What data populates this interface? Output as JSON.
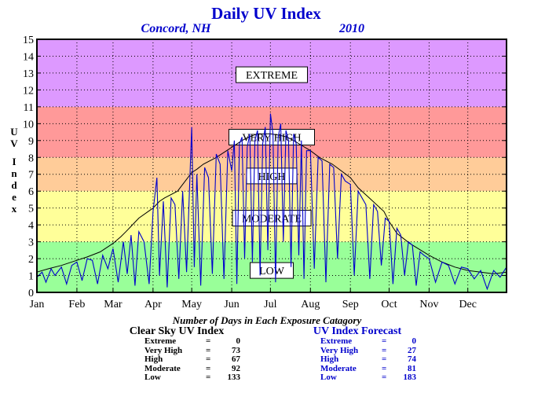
{
  "chart_data": {
    "type": "line",
    "title": "Daily UV Index",
    "subtitle_left": "Concord, NH",
    "subtitle_right": "2010",
    "ylabel": "UV Index",
    "ylim": [
      0,
      15
    ],
    "yticks": [
      "0",
      "1",
      "2",
      "3",
      "4",
      "5",
      "6",
      "7",
      "8",
      "9",
      "10",
      "11",
      "12",
      "13",
      "14",
      "15"
    ],
    "xlim": [
      1,
      365
    ],
    "months": [
      {
        "label": "Jan",
        "start": 1
      },
      {
        "label": "Feb",
        "start": 32
      },
      {
        "label": "Mar",
        "start": 60
      },
      {
        "label": "Apr",
        "start": 91
      },
      {
        "label": "May",
        "start": 121
      },
      {
        "label": "Jun",
        "start": 152
      },
      {
        "label": "Jul",
        "start": 182
      },
      {
        "label": "Aug",
        "start": 213
      },
      {
        "label": "Sep",
        "start": 244
      },
      {
        "label": "Oct",
        "start": 274
      },
      {
        "label": "Nov",
        "start": 305
      },
      {
        "label": "Dec",
        "start": 335
      }
    ],
    "grid": true,
    "bands": [
      {
        "label": "LOW",
        "from": 0,
        "to": 3,
        "color": "#99ff99",
        "label_at": 1.3
      },
      {
        "label": "MODERATE",
        "from": 3,
        "to": 6,
        "color": "#ffff99",
        "label_at": 4.4
      },
      {
        "label": "HIGH",
        "from": 6,
        "to": 8,
        "color": "#ffcc99",
        "label_at": 6.9
      },
      {
        "label": "VERY HIGH",
        "from": 8,
        "to": 11,
        "color": "#ff9999",
        "label_at": 9.2
      },
      {
        "label": "EXTREME",
        "from": 11,
        "to": 15,
        "color": "#dd99ff",
        "label_at": 12.9
      }
    ],
    "series": [
      {
        "name": "Clear Sky UV Index",
        "color": "#000000",
        "x": [
          1,
          10,
          20,
          32,
          40,
          50,
          60,
          66,
          70,
          75,
          80,
          91,
          96,
          100,
          110,
          121,
          125,
          130,
          140,
          152,
          160,
          165,
          172,
          182,
          190,
          195,
          200,
          213,
          220,
          230,
          244,
          250,
          260,
          270,
          274,
          280,
          290,
          305,
          315,
          325,
          335,
          345,
          355,
          365
        ],
        "y": [
          1.2,
          1.4,
          1.6,
          1.9,
          2.1,
          2.4,
          2.9,
          3.3,
          3.6,
          4.0,
          4.4,
          5.0,
          5.4,
          5.6,
          6.0,
          7.1,
          7.3,
          7.6,
          8.0,
          8.6,
          9.0,
          9.2,
          9.4,
          9.4,
          9.3,
          9.2,
          9.0,
          8.4,
          8.0,
          7.6,
          6.8,
          6.2,
          5.5,
          4.8,
          4.2,
          3.5,
          2.9,
          2.2,
          1.8,
          1.5,
          1.3,
          1.2,
          1.1,
          1.2
        ]
      },
      {
        "name": "UV Index Forecast",
        "color": "#0000cc",
        "x": [
          1,
          5,
          8,
          12,
          15,
          20,
          24,
          28,
          32,
          36,
          40,
          44,
          48,
          52,
          56,
          60,
          64,
          68,
          71,
          74,
          77,
          80,
          84,
          88,
          91,
          94,
          96,
          99,
          102,
          105,
          108,
          111,
          114,
          117,
          121,
          123,
          125,
          128,
          131,
          134,
          137,
          140,
          143,
          146,
          149,
          152,
          154,
          156,
          158,
          160,
          162,
          164,
          166,
          168,
          170,
          172,
          174,
          176,
          178,
          180,
          182,
          184,
          186,
          188,
          190,
          192,
          194,
          196,
          198,
          200,
          202,
          204,
          206,
          208,
          210,
          213,
          216,
          219,
          222,
          225,
          228,
          231,
          234,
          237,
          240,
          244,
          247,
          250,
          253,
          256,
          259,
          262,
          265,
          268,
          271,
          274,
          277,
          280,
          283,
          286,
          289,
          292,
          295,
          298,
          301,
          305,
          310,
          315,
          320,
          325,
          330,
          335,
          340,
          345,
          350,
          355,
          360,
          365
        ],
        "y": [
          0.9,
          1.2,
          0.6,
          1.4,
          1.0,
          1.5,
          0.5,
          1.6,
          1.8,
          0.7,
          2.0,
          1.9,
          0.5,
          2.2,
          1.4,
          2.6,
          0.6,
          3.0,
          1.1,
          3.4,
          0.4,
          3.6,
          3.0,
          0.5,
          4.8,
          6.8,
          1.0,
          5.4,
          0.3,
          5.6,
          5.2,
          0.8,
          6.0,
          1.2,
          9.8,
          1.5,
          7.0,
          0.4,
          7.4,
          6.8,
          1.1,
          8.2,
          7.6,
          0.8,
          8.4,
          7.2,
          9.0,
          0.5,
          8.8,
          9.2,
          2.0,
          8.6,
          9.4,
          1.8,
          9.0,
          9.6,
          1.0,
          8.8,
          9.8,
          2.5,
          10.6,
          9.4,
          0.6,
          9.2,
          10.0,
          3.0,
          9.6,
          9.0,
          1.5,
          9.4,
          8.8,
          2.2,
          9.0,
          0.8,
          8.4,
          8.4,
          1.4,
          8.0,
          7.8,
          0.6,
          7.6,
          7.4,
          2.0,
          7.0,
          6.6,
          6.4,
          1.0,
          6.0,
          5.6,
          5.2,
          0.8,
          5.2,
          4.8,
          1.6,
          4.4,
          4.2,
          0.5,
          3.8,
          3.4,
          1.0,
          3.0,
          2.8,
          0.4,
          2.4,
          2.2,
          2.0,
          0.6,
          1.8,
          1.6,
          0.5,
          1.5,
          1.4,
          0.8,
          1.3,
          0.2,
          1.3,
          0.9,
          1.5
        ]
      }
    ]
  },
  "summary": {
    "heading": "Number of Days in Each Exposure Catagory",
    "clear_sky": {
      "title": "Clear Sky UV Index",
      "rows": [
        {
          "label": "Extreme",
          "eq": "=",
          "value": "0"
        },
        {
          "label": "Very High",
          "eq": "=",
          "value": "73"
        },
        {
          "label": "High",
          "eq": "=",
          "value": "67"
        },
        {
          "label": "Moderate",
          "eq": "=",
          "value": "92"
        },
        {
          "label": "Low",
          "eq": "=",
          "value": "133"
        }
      ]
    },
    "forecast": {
      "title": "UV Index Forecast",
      "rows": [
        {
          "label": "Extreme",
          "eq": "=",
          "value": "0"
        },
        {
          "label": "Very High",
          "eq": "=",
          "value": "27"
        },
        {
          "label": "High",
          "eq": "=",
          "value": "74"
        },
        {
          "label": "Moderate",
          "eq": "=",
          "value": "81"
        },
        {
          "label": "Low",
          "eq": "=",
          "value": "183"
        }
      ]
    },
    "text_color": "#000000",
    "forecast_color": "#0000cc"
  }
}
